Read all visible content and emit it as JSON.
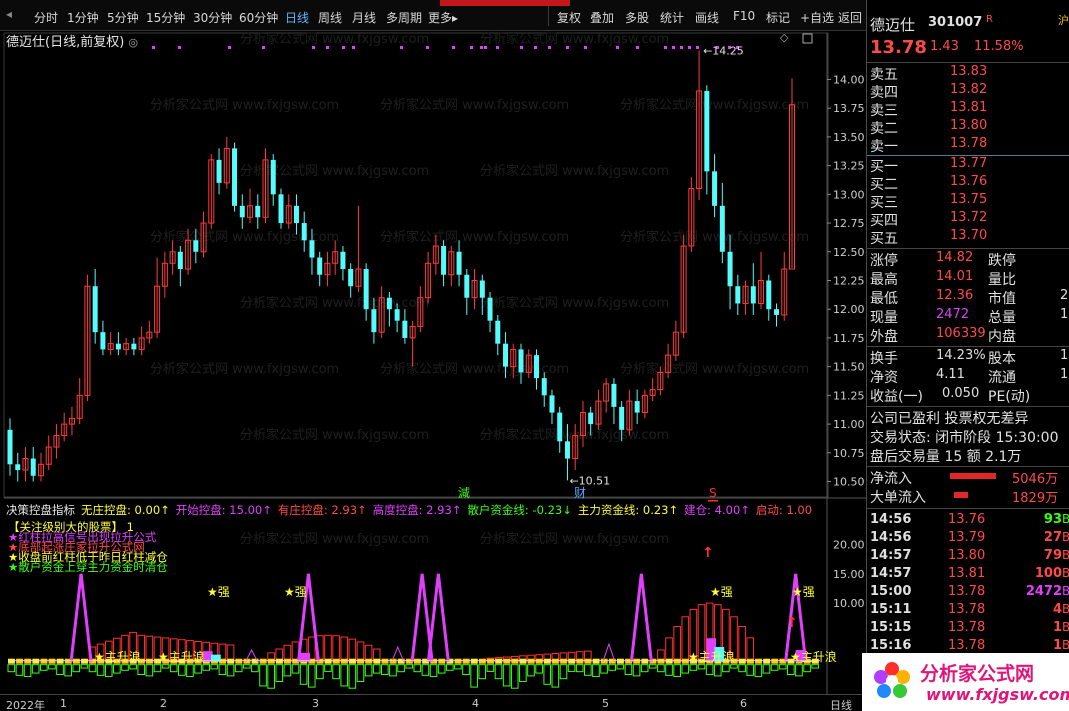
{
  "toolbar": {
    "tabs": [
      "分时",
      "1分钟",
      "5分钟",
      "15分钟",
      "30分钟",
      "60分钟",
      "日线",
      "周线",
      "月线",
      "多周期",
      "更多▸"
    ],
    "active_tab": "日线",
    "right_buttons": [
      "复权",
      "叠加",
      "多股",
      "统计",
      "画线",
      "F10",
      "标记",
      "+自选",
      "返回"
    ]
  },
  "price_chart": {
    "title": "德迈仕(日线,前复权)",
    "y_ticks": [
      "14.00",
      "13.75",
      "13.50",
      "13.25",
      "13.00",
      "12.75",
      "12.50",
      "12.25",
      "12.00",
      "11.75",
      "11.50",
      "11.25",
      "11.00",
      "10.75",
      "10.50"
    ],
    "high_marker": "14.25",
    "low_marker": "10.51",
    "watermark": "分析家公式网 www.fxjgsw.com",
    "chart_data": {
      "type": "candlestick",
      "ylim": [
        10.4,
        14.3
      ],
      "candles": [
        [
          10.95,
          10.65,
          11.05,
          10.55
        ],
        [
          10.65,
          10.6,
          10.75,
          10.5
        ],
        [
          10.6,
          10.7,
          10.8,
          10.5
        ],
        [
          10.7,
          10.55,
          10.8,
          10.5
        ],
        [
          10.55,
          10.65,
          10.75,
          10.5
        ],
        [
          10.65,
          10.8,
          10.9,
          10.6
        ],
        [
          10.8,
          10.9,
          11.0,
          10.7
        ],
        [
          10.9,
          11.0,
          11.1,
          10.85
        ],
        [
          11.0,
          11.05,
          11.15,
          10.9
        ],
        [
          11.05,
          11.25,
          11.4,
          11.0
        ],
        [
          11.25,
          12.2,
          12.3,
          11.2
        ],
        [
          12.2,
          11.8,
          12.35,
          11.7
        ],
        [
          11.8,
          11.65,
          11.9,
          11.6
        ],
        [
          11.65,
          11.7,
          11.8,
          11.6
        ],
        [
          11.7,
          11.65,
          11.8,
          11.6
        ],
        [
          11.65,
          11.7,
          11.75,
          11.6
        ],
        [
          11.7,
          11.65,
          11.75,
          11.6
        ],
        [
          11.65,
          11.75,
          11.85,
          11.6
        ],
        [
          11.75,
          11.8,
          11.9,
          11.7
        ],
        [
          11.8,
          12.2,
          12.45,
          11.75
        ],
        [
          12.2,
          12.4,
          12.5,
          12.1
        ],
        [
          12.4,
          12.5,
          12.6,
          12.3
        ],
        [
          12.5,
          12.35,
          12.55,
          12.2
        ],
        [
          12.35,
          12.6,
          12.7,
          12.3
        ],
        [
          12.6,
          12.5,
          12.7,
          12.4
        ],
        [
          12.5,
          12.75,
          12.85,
          12.45
        ],
        [
          12.75,
          13.3,
          13.35,
          12.7
        ],
        [
          13.3,
          13.1,
          13.4,
          13.0
        ],
        [
          13.1,
          13.4,
          13.5,
          13.05
        ],
        [
          13.4,
          12.9,
          13.45,
          12.85
        ],
        [
          12.9,
          12.8,
          13.0,
          12.7
        ],
        [
          12.8,
          12.9,
          13.05,
          12.75
        ],
        [
          12.9,
          12.8,
          13.0,
          12.7
        ],
        [
          12.8,
          13.3,
          13.4,
          12.75
        ],
        [
          13.3,
          13.0,
          13.35,
          12.9
        ],
        [
          13.0,
          12.75,
          13.05,
          12.7
        ],
        [
          12.75,
          12.9,
          13.0,
          12.7
        ],
        [
          12.9,
          12.75,
          13.0,
          12.65
        ],
        [
          12.75,
          12.6,
          12.85,
          12.5
        ],
        [
          12.6,
          12.45,
          12.7,
          12.3
        ],
        [
          12.45,
          12.3,
          12.5,
          12.2
        ],
        [
          12.3,
          12.4,
          12.5,
          12.2
        ],
        [
          12.4,
          12.5,
          12.6,
          12.3
        ],
        [
          12.5,
          12.35,
          12.55,
          12.25
        ],
        [
          12.35,
          12.2,
          12.4,
          12.1
        ],
        [
          12.2,
          12.35,
          12.9,
          12.15
        ],
        [
          12.35,
          12.0,
          12.4,
          11.9
        ],
        [
          12.0,
          11.8,
          12.1,
          11.7
        ],
        [
          11.8,
          12.1,
          12.2,
          11.75
        ],
        [
          12.1,
          12.0,
          12.15,
          11.85
        ],
        [
          12.0,
          11.9,
          12.05,
          11.8
        ],
        [
          11.9,
          11.75,
          12.0,
          11.7
        ],
        [
          11.75,
          11.85,
          11.9,
          11.5
        ],
        [
          11.85,
          12.1,
          12.2,
          11.8
        ],
        [
          12.1,
          12.4,
          12.5,
          12.05
        ],
        [
          12.4,
          12.55,
          12.65,
          12.3
        ],
        [
          12.55,
          12.3,
          12.6,
          12.2
        ],
        [
          12.3,
          12.5,
          12.55,
          12.2
        ],
        [
          12.5,
          12.3,
          12.6,
          12.2
        ],
        [
          12.3,
          12.1,
          12.35,
          11.95
        ],
        [
          12.1,
          12.25,
          12.35,
          12.0
        ],
        [
          12.25,
          12.1,
          12.3,
          11.95
        ],
        [
          12.1,
          11.9,
          12.15,
          11.8
        ],
        [
          11.9,
          11.7,
          11.95,
          11.6
        ],
        [
          11.7,
          11.5,
          11.8,
          11.4
        ],
        [
          11.5,
          11.65,
          11.7,
          11.4
        ],
        [
          11.65,
          11.45,
          11.7,
          11.35
        ],
        [
          11.45,
          11.6,
          11.65,
          11.4
        ],
        [
          11.6,
          11.4,
          11.65,
          11.3
        ],
        [
          11.4,
          11.25,
          11.45,
          11.15
        ],
        [
          11.25,
          11.1,
          11.3,
          11.0
        ],
        [
          11.1,
          10.85,
          11.15,
          10.75
        ],
        [
          10.85,
          10.7,
          11.0,
          10.51
        ],
        [
          10.7,
          10.9,
          11.0,
          10.6
        ],
        [
          10.9,
          11.1,
          11.2,
          10.8
        ],
        [
          11.1,
          11.0,
          11.15,
          10.9
        ],
        [
          11.0,
          11.2,
          11.3,
          10.95
        ],
        [
          11.2,
          11.35,
          11.4,
          11.1
        ],
        [
          11.35,
          11.15,
          11.4,
          11.0
        ],
        [
          11.15,
          10.95,
          11.2,
          10.85
        ],
        [
          10.95,
          11.2,
          11.3,
          10.9
        ],
        [
          11.2,
          11.1,
          11.3,
          11.0
        ],
        [
          11.1,
          11.25,
          11.3,
          11.05
        ],
        [
          11.25,
          11.3,
          11.4,
          11.2
        ],
        [
          11.3,
          11.45,
          11.5,
          11.25
        ],
        [
          11.45,
          11.6,
          11.7,
          11.4
        ],
        [
          11.6,
          11.8,
          11.9,
          11.55
        ],
        [
          11.8,
          12.55,
          12.65,
          11.75
        ],
        [
          12.55,
          13.05,
          13.15,
          12.5
        ],
        [
          13.05,
          13.9,
          14.25,
          12.95
        ],
        [
          13.9,
          13.2,
          13.95,
          13.0
        ],
        [
          13.2,
          12.9,
          13.35,
          12.8
        ],
        [
          12.9,
          12.5,
          13.1,
          12.4
        ],
        [
          12.5,
          12.2,
          12.65,
          12.0
        ],
        [
          12.2,
          12.05,
          12.3,
          11.95
        ],
        [
          12.05,
          12.2,
          12.25,
          11.95
        ],
        [
          12.2,
          12.05,
          12.4,
          11.95
        ],
        [
          12.05,
          12.25,
          12.5,
          12.0
        ],
        [
          12.25,
          12.0,
          12.3,
          11.9
        ],
        [
          12.0,
          11.95,
          12.05,
          11.85
        ],
        [
          11.95,
          12.35,
          12.5,
          11.9
        ],
        [
          12.35,
          13.78,
          14.01,
          12.36
        ]
      ]
    }
  },
  "indicator": {
    "name": "决策控盘指标",
    "items": [
      {
        "label": "无庄控盘:",
        "value": "0.00",
        "arrow": "↑",
        "color": "#ffff33"
      },
      {
        "label": "开始控盘:",
        "value": "15.00",
        "arrow": "↑",
        "color": "#e040fb"
      },
      {
        "label": "有庄控盘:",
        "value": "2.93",
        "arrow": "↑",
        "color": "#ff4a4a"
      },
      {
        "label": "高度控盘:",
        "value": "2.93",
        "arrow": "↑",
        "color": "#e040fb"
      },
      {
        "label": "散户资金线:",
        "value": "-0.23",
        "arrow": "↓",
        "color": "#39ff14"
      },
      {
        "label": "主力资金线:",
        "value": "0.23",
        "arrow": "↑",
        "color": "#ffff33"
      },
      {
        "label": "建仓:",
        "value": "4.00",
        "arrow": "↑",
        "color": "#e040fb"
      },
      {
        "label": "启动:",
        "value": "1.00",
        "arrow": "",
        "color": "#ff4a4a"
      }
    ],
    "legend": [
      {
        "text": "【关注级别大的股票】",
        "value": "1",
        "color": "#ffff33"
      },
      {
        "text": "★红柱拉高信号出现拉升公式",
        "color": "#e040fb"
      },
      {
        "text": "★底部起涨庄家拉升公式网",
        "color": "#ff4a4a"
      },
      {
        "text": "★收盘前红柱低于昨日红柱减仓",
        "color": "#ffff33"
      },
      {
        "text": "★散户资金上穿主力资金时清仓",
        "color": "#39ff14"
      }
    ],
    "y_ticks": [
      "20.00",
      "15.00",
      "10.00"
    ],
    "markers": {
      "jian": "減",
      "cai": "财",
      "s": "S",
      "strong": "★强",
      "rise": "★主升浪"
    }
  },
  "date_axis": {
    "labels": [
      "2022年",
      "1",
      "2",
      "3",
      "4",
      "5",
      "6"
    ],
    "period": "日线"
  },
  "right_panel": {
    "name": "德迈仕",
    "code": "301007",
    "r_badge": "R",
    "price": "13.78",
    "change": "1.43",
    "pct": "11.58%",
    "sell": [
      {
        "label": "卖五",
        "price": "13.83"
      },
      {
        "label": "卖四",
        "price": "13.82"
      },
      {
        "label": "卖三",
        "price": "13.81"
      },
      {
        "label": "卖二",
        "price": "13.80"
      },
      {
        "label": "卖一",
        "price": "13.78"
      }
    ],
    "buy": [
      {
        "label": "买一",
        "price": "13.77"
      },
      {
        "label": "买二",
        "price": "13.76"
      },
      {
        "label": "买三",
        "price": "13.75"
      },
      {
        "label": "买四",
        "price": "13.72"
      },
      {
        "label": "买五",
        "price": "13.70"
      }
    ],
    "stats": [
      {
        "l1": "涨停",
        "v1": "14.82",
        "c1": "red",
        "l2": "跌停"
      },
      {
        "l1": "最高",
        "v1": "14.01",
        "c1": "red",
        "l2": "量比"
      },
      {
        "l1": "最低",
        "v1": "12.36",
        "c1": "red",
        "l2": "市值",
        "v2": "2"
      },
      {
        "l1": "现量",
        "v1": "2472",
        "c1": "mag",
        "l2": "总量",
        "v2": "1"
      },
      {
        "l1": "外盘",
        "v1": "106339",
        "c1": "red",
        "l2": "内盘"
      }
    ],
    "stats2": [
      {
        "l1": "换手",
        "v1": "14.23%",
        "l2": "股本",
        "v2": "1"
      },
      {
        "l1": "净资",
        "v1": "4.11",
        "l2": "流通",
        "v2": "1"
      },
      {
        "l1": "收益(一)",
        "v1": "0.050",
        "l2": "PE(动)"
      }
    ],
    "info": [
      "公司已盈利 投票权无差异",
      "交易状态: 闭市阶段 15:30:00",
      "盘后交易量 15 额 2.1万"
    ],
    "flow": [
      {
        "label": "净流入",
        "value": "5046万"
      },
      {
        "label": "大单流入",
        "value": "1829万"
      }
    ],
    "ticks": [
      {
        "t": "14:56",
        "p": "13.76",
        "v": "93",
        "c": "grn"
      },
      {
        "t": "14:56",
        "p": "13.79",
        "v": "27",
        "c": "red"
      },
      {
        "t": "14:57",
        "p": "13.80",
        "v": "79",
        "c": "red"
      },
      {
        "t": "14:57",
        "p": "13.81",
        "v": "100",
        "c": "red"
      },
      {
        "t": "15:00",
        "p": "13.78",
        "v": "2472",
        "c": "mag"
      },
      {
        "t": "15:11",
        "p": "13.78",
        "v": "4",
        "c": "red"
      },
      {
        "t": "15:15",
        "p": "13.78",
        "v": "1",
        "c": "red"
      },
      {
        "t": "15:16",
        "p": "13.78",
        "v": "1",
        "c": "red"
      }
    ],
    "side_tab": "沪"
  },
  "logo": {
    "line1": "分析家公式网",
    "line2": "www.fxjgsw.com"
  }
}
